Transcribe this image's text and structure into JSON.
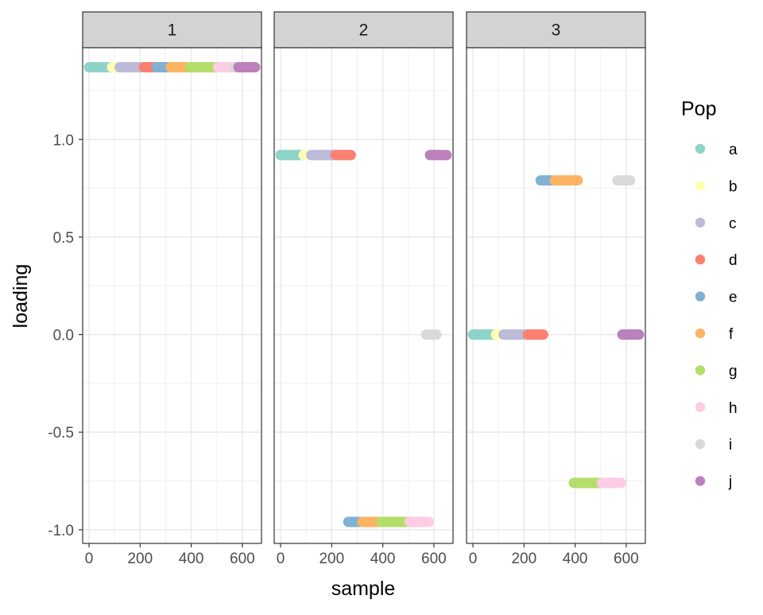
{
  "chart_data": {
    "type": "scatter",
    "xlabel": "sample",
    "ylabel": "loading",
    "xlim": [
      -25,
      675
    ],
    "ylim": [
      -1.07,
      1.47
    ],
    "x_ticks": [
      0,
      200,
      400,
      600
    ],
    "x_tick_labels": [
      "0",
      "200",
      "400",
      "600"
    ],
    "y_ticks": [
      -1.0,
      -0.5,
      0.0,
      0.5,
      1.0
    ],
    "y_tick_labels": [
      "-1.0",
      "-0.5",
      "0.0",
      "0.5",
      "1.0"
    ],
    "grid": true,
    "legend": {
      "title": "Pop",
      "position": "right",
      "entries": [
        {
          "label": "a",
          "color": "#8DD3C7"
        },
        {
          "label": "b",
          "color": "#FFFFB3"
        },
        {
          "label": "c",
          "color": "#BEBADA"
        },
        {
          "label": "d",
          "color": "#FB8072"
        },
        {
          "label": "e",
          "color": "#80B1D3"
        },
        {
          "label": "f",
          "color": "#FDB462"
        },
        {
          "label": "g",
          "color": "#B3DE69"
        },
        {
          "label": "h",
          "color": "#FCCDE5"
        },
        {
          "label": "i",
          "color": "#D9D9D9"
        },
        {
          "label": "j",
          "color": "#BC80BD"
        }
      ]
    },
    "panels": [
      {
        "strip": "1",
        "segments": [
          {
            "pop": "a",
            "x_start": 0,
            "x_end": 80,
            "y": 1.37
          },
          {
            "pop": "b",
            "x_start": 90,
            "x_end": 110,
            "y": 1.37
          },
          {
            "pop": "c",
            "x_start": 120,
            "x_end": 205,
            "y": 1.37
          },
          {
            "pop": "d",
            "x_start": 215,
            "x_end": 255,
            "y": 1.37
          },
          {
            "pop": "e",
            "x_start": 265,
            "x_end": 310,
            "y": 1.37
          },
          {
            "pop": "f",
            "x_start": 320,
            "x_end": 385,
            "y": 1.37
          },
          {
            "pop": "g",
            "x_start": 395,
            "x_end": 495,
            "y": 1.37
          },
          {
            "pop": "h",
            "x_start": 505,
            "x_end": 565,
            "y": 1.37
          },
          {
            "pop": "i",
            "x_start": 570,
            "x_end": 580,
            "y": 1.37
          },
          {
            "pop": "j",
            "x_start": 585,
            "x_end": 650,
            "y": 1.37
          }
        ]
      },
      {
        "strip": "2",
        "segments": [
          {
            "pop": "a",
            "x_start": 0,
            "x_end": 80,
            "y": 0.92
          },
          {
            "pop": "b",
            "x_start": 90,
            "x_end": 110,
            "y": 0.92
          },
          {
            "pop": "c",
            "x_start": 120,
            "x_end": 205,
            "y": 0.92
          },
          {
            "pop": "d",
            "x_start": 215,
            "x_end": 275,
            "y": 0.92
          },
          {
            "pop": "j",
            "x_start": 585,
            "x_end": 650,
            "y": 0.92
          },
          {
            "pop": "i",
            "x_start": 570,
            "x_end": 610,
            "y": 0.0
          },
          {
            "pop": "e",
            "x_start": 265,
            "x_end": 310,
            "y": -0.96
          },
          {
            "pop": "f",
            "x_start": 320,
            "x_end": 385,
            "y": -0.96
          },
          {
            "pop": "g",
            "x_start": 395,
            "x_end": 495,
            "y": -0.96
          },
          {
            "pop": "h",
            "x_start": 505,
            "x_end": 580,
            "y": -0.96
          }
        ]
      },
      {
        "strip": "3",
        "segments": [
          {
            "pop": "e",
            "x_start": 265,
            "x_end": 310,
            "y": 0.79
          },
          {
            "pop": "f",
            "x_start": 320,
            "x_end": 410,
            "y": 0.79
          },
          {
            "pop": "i",
            "x_start": 565,
            "x_end": 615,
            "y": 0.79
          },
          {
            "pop": "a",
            "x_start": 0,
            "x_end": 80,
            "y": 0.0
          },
          {
            "pop": "b",
            "x_start": 90,
            "x_end": 110,
            "y": 0.0
          },
          {
            "pop": "c",
            "x_start": 120,
            "x_end": 205,
            "y": 0.0
          },
          {
            "pop": "d",
            "x_start": 215,
            "x_end": 275,
            "y": 0.0
          },
          {
            "pop": "j",
            "x_start": 585,
            "x_end": 650,
            "y": 0.0
          },
          {
            "pop": "g",
            "x_start": 395,
            "x_end": 495,
            "y": -0.76
          },
          {
            "pop": "h",
            "x_start": 505,
            "x_end": 580,
            "y": -0.76
          }
        ]
      }
    ]
  }
}
